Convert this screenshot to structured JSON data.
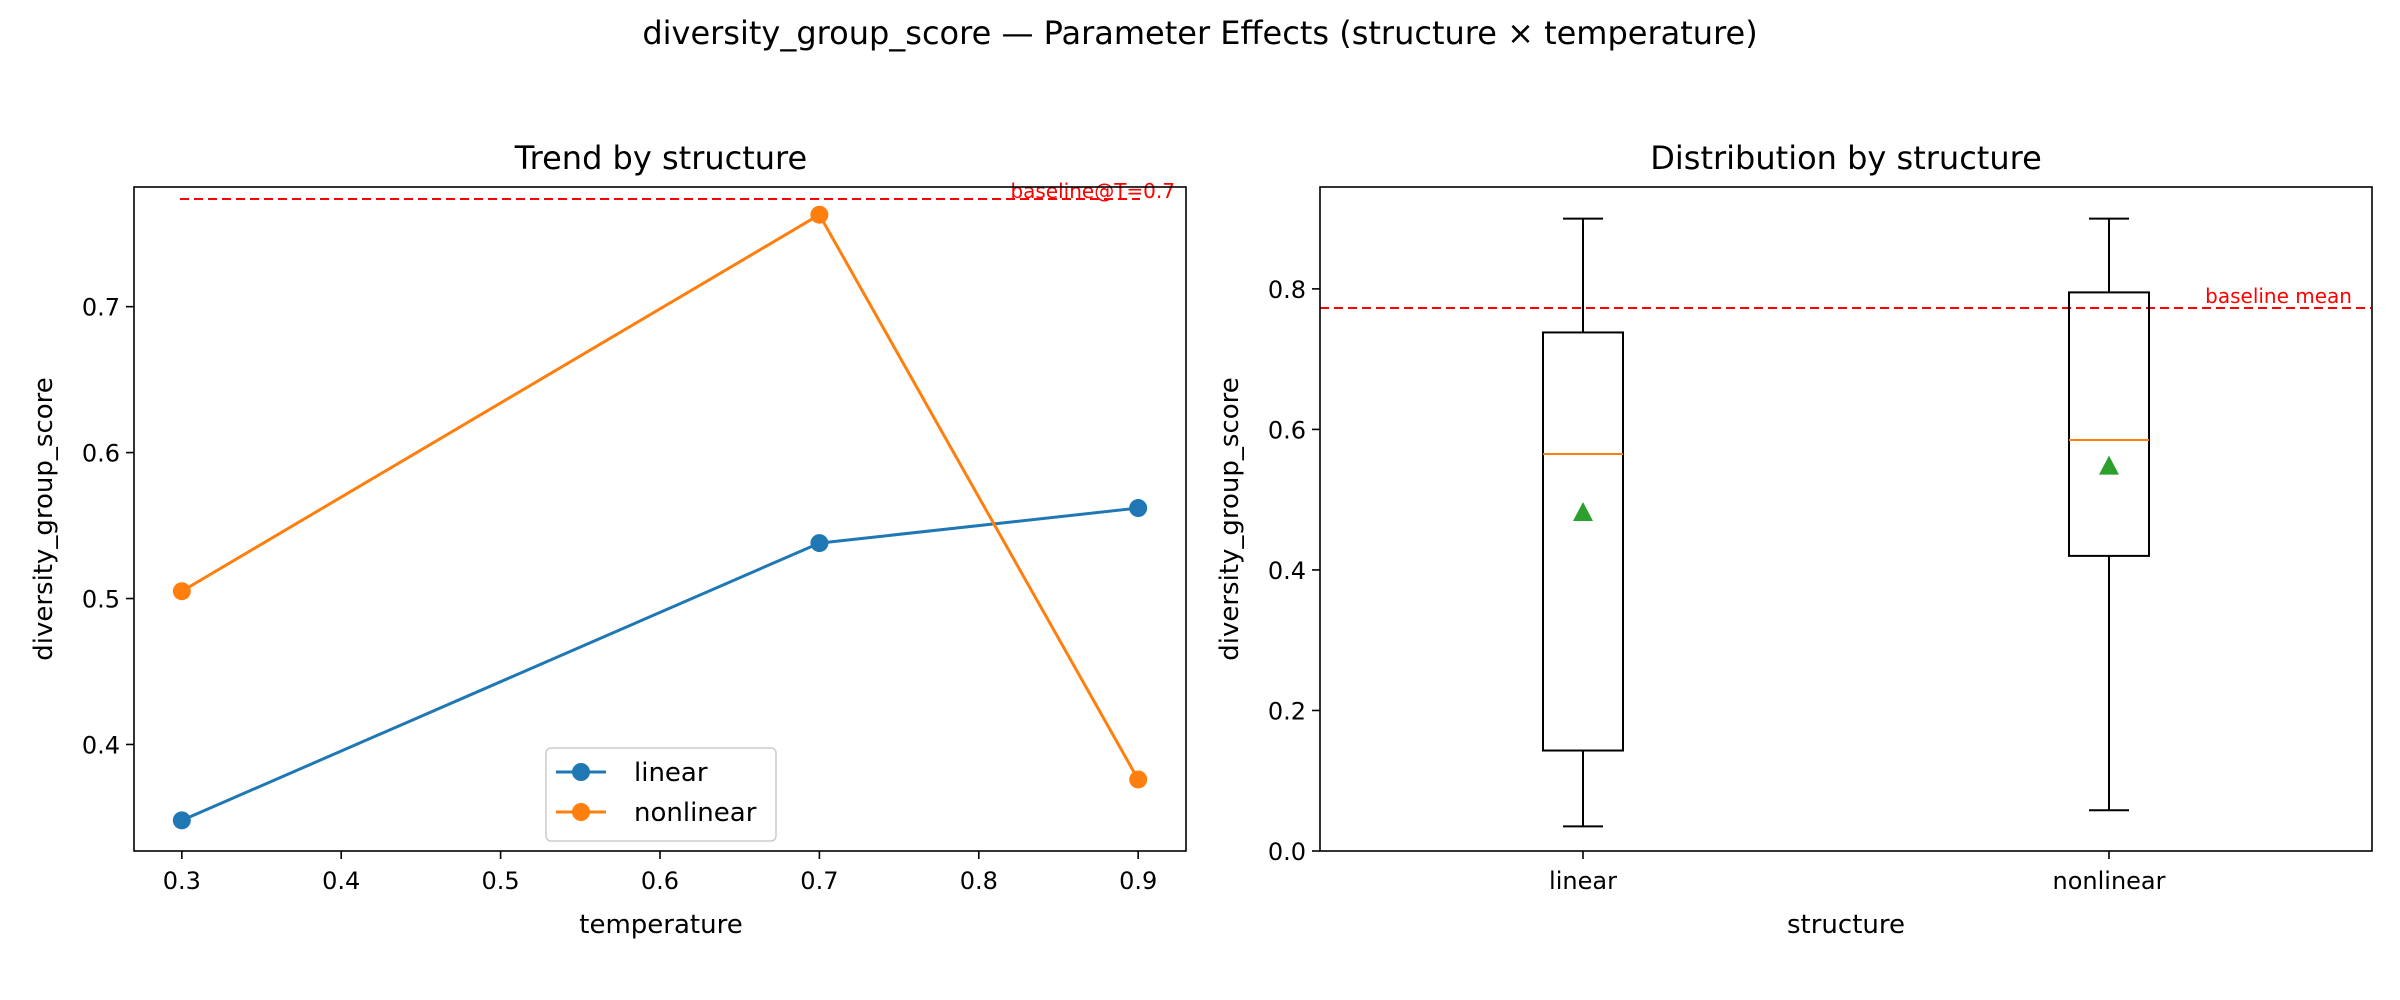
{
  "figure": {
    "title": "diversity_group_score — Parameter Effects (structure × temperature)"
  },
  "chart_data": [
    {
      "type": "line",
      "title": "Trend by structure",
      "xlabel": "temperature",
      "ylabel": "diversity_group_score",
      "x": [
        0.3,
        0.7,
        0.9
      ],
      "xlim": [
        0.27,
        0.93
      ],
      "ylim": [
        0.327,
        0.782
      ],
      "xticks": [
        "0.3",
        "0.4",
        "0.5",
        "0.6",
        "0.7",
        "0.8",
        "0.9"
      ],
      "yticks": [
        "0.4",
        "0.5",
        "0.6",
        "0.7"
      ],
      "series": [
        {
          "name": "linear",
          "values": [
            0.348,
            0.538,
            0.562
          ],
          "color": "#1f77b4"
        },
        {
          "name": "nonlinear",
          "values": [
            0.505,
            0.763,
            0.376
          ],
          "color": "#ff7f0e"
        }
      ],
      "baseline": {
        "value": 0.773,
        "label": "baseline@T=0.7",
        "color": "#ff0000"
      },
      "legend": "bottom-center",
      "grid": false
    },
    {
      "type": "box",
      "title": "Distribution by structure",
      "xlabel": "structure",
      "ylabel": "diversity_group_score",
      "categories": [
        "linear",
        "nonlinear"
      ],
      "ylim": [
        0.0,
        0.945
      ],
      "yticks": [
        "0.0",
        "0.2",
        "0.4",
        "0.6",
        "0.8"
      ],
      "boxes": [
        {
          "name": "linear",
          "min": 0.035,
          "q1": 0.143,
          "median": 0.565,
          "q3": 0.738,
          "max": 0.9,
          "mean": 0.481
        },
        {
          "name": "nonlinear",
          "min": 0.058,
          "q1": 0.42,
          "median": 0.585,
          "q3": 0.795,
          "max": 0.9,
          "mean": 0.547
        }
      ],
      "median_color": "#ff7f0e",
      "mean_color": "#2ca02c",
      "baseline": {
        "value": 0.77,
        "label": "baseline mean",
        "color": "#ff0000"
      },
      "grid": false
    }
  ]
}
